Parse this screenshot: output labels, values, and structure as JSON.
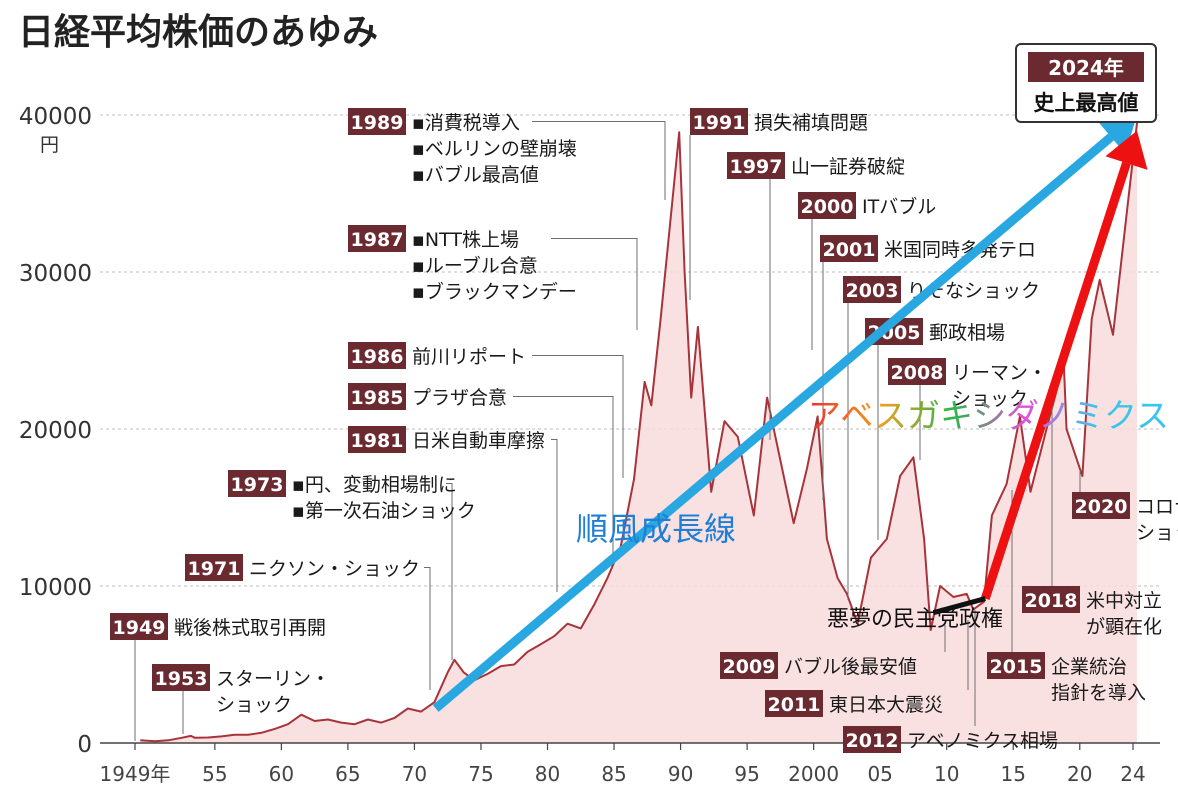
{
  "title": "日経平均株価のあゆみ",
  "chart_data": {
    "type": "area",
    "y_unit": "円",
    "ylim": [
      0,
      41000
    ],
    "xlim": [
      1949,
      2025
    ],
    "y_ticks": [
      {
        "value": 0,
        "label": "0"
      },
      {
        "value": 10000,
        "label": "10000"
      },
      {
        "value": 20000,
        "label": "20000"
      },
      {
        "value": 30000,
        "label": "30000"
      },
      {
        "value": 40000,
        "label": "40000"
      }
    ],
    "x_ticks": [
      {
        "value": 1949,
        "label": "1949年"
      },
      {
        "value": 1955,
        "label": "55"
      },
      {
        "value": 1960,
        "label": "60"
      },
      {
        "value": 1965,
        "label": "65"
      },
      {
        "value": 1970,
        "label": "70"
      },
      {
        "value": 1975,
        "label": "75"
      },
      {
        "value": 1980,
        "label": "80"
      },
      {
        "value": 1985,
        "label": "85"
      },
      {
        "value": 1990,
        "label": "90"
      },
      {
        "value": 1995,
        "label": "95"
      },
      {
        "value": 2000,
        "label": "2000"
      },
      {
        "value": 2005,
        "label": "05"
      },
      {
        "value": 2010,
        "label": "10"
      },
      {
        "value": 2015,
        "label": "15"
      },
      {
        "value": 2020,
        "label": "20"
      },
      {
        "value": 2024,
        "label": "24"
      }
    ],
    "grid": "horizontal dashed",
    "colors": {
      "line": "#a8333a",
      "fill": "#f8dcdc",
      "label_box": "#6b2a30",
      "blue_arrow": "#29a7e1",
      "red_arrow": "#ee1111"
    },
    "series": [
      {
        "values": [
          [
            1949.4,
            180
          ],
          [
            1950.5,
            110
          ],
          [
            1951.5,
            170
          ],
          [
            1952.5,
            330
          ],
          [
            1953.2,
            450
          ],
          [
            1953.5,
            330
          ],
          [
            1954.5,
            350
          ],
          [
            1955.5,
            420
          ],
          [
            1956.5,
            520
          ],
          [
            1957.5,
            520
          ],
          [
            1958.5,
            650
          ],
          [
            1959.5,
            900
          ],
          [
            1960.5,
            1200
          ],
          [
            1961.5,
            1800
          ],
          [
            1962.5,
            1400
          ],
          [
            1963.5,
            1500
          ],
          [
            1964.5,
            1300
          ],
          [
            1965.5,
            1200
          ],
          [
            1966.5,
            1500
          ],
          [
            1967.5,
            1300
          ],
          [
            1968.5,
            1600
          ],
          [
            1969.5,
            2200
          ],
          [
            1970.5,
            2000
          ],
          [
            1971.5,
            2600
          ],
          [
            1972.5,
            4500
          ],
          [
            1973.0,
            5300
          ],
          [
            1973.7,
            4500
          ],
          [
            1974.5,
            4000
          ],
          [
            1975.5,
            4400
          ],
          [
            1976.5,
            4900
          ],
          [
            1977.5,
            5000
          ],
          [
            1978.5,
            5800
          ],
          [
            1979.5,
            6300
          ],
          [
            1980.5,
            6800
          ],
          [
            1981.5,
            7600
          ],
          [
            1982.5,
            7300
          ],
          [
            1983.5,
            8800
          ],
          [
            1984.5,
            10500
          ],
          [
            1985.5,
            12500
          ],
          [
            1986.5,
            16800
          ],
          [
            1987.3,
            23000
          ],
          [
            1987.8,
            21500
          ],
          [
            1988.5,
            27000
          ],
          [
            1989.9,
            38900
          ],
          [
            1990.3,
            30000
          ],
          [
            1990.8,
            22000
          ],
          [
            1991.3,
            26500
          ],
          [
            1992.3,
            16000
          ],
          [
            1993.3,
            20500
          ],
          [
            1994.3,
            19500
          ],
          [
            1995.5,
            14500
          ],
          [
            1996.5,
            22000
          ],
          [
            1997.5,
            18000
          ],
          [
            1998.5,
            14000
          ],
          [
            1999.5,
            17500
          ],
          [
            2000.3,
            20800
          ],
          [
            2001.0,
            13000
          ],
          [
            2001.8,
            10500
          ],
          [
            2002.5,
            9500
          ],
          [
            2003.3,
            7600
          ],
          [
            2004.3,
            11800
          ],
          [
            2005.5,
            13000
          ],
          [
            2006.5,
            17000
          ],
          [
            2007.5,
            18200
          ],
          [
            2008.3,
            13000
          ],
          [
            2008.8,
            7200
          ],
          [
            2009.5,
            10000
          ],
          [
            2010.5,
            9300
          ],
          [
            2011.5,
            9500
          ],
          [
            2012.0,
            8500
          ],
          [
            2012.8,
            9000
          ],
          [
            2013.4,
            14500
          ],
          [
            2014.5,
            16500
          ],
          [
            2015.5,
            20800
          ],
          [
            2016.3,
            16000
          ],
          [
            2017.5,
            20000
          ],
          [
            2018.8,
            24200
          ],
          [
            2019.0,
            20000
          ],
          [
            2020.2,
            17000
          ],
          [
            2020.9,
            27000
          ],
          [
            2021.5,
            29500
          ],
          [
            2022.5,
            26000
          ],
          [
            2023.5,
            33500
          ],
          [
            2024.3,
            39500
          ]
        ]
      }
    ],
    "events": [
      {
        "year": "1949",
        "text": [
          "戦後株式取引再開"
        ],
        "at": 1949.4
      },
      {
        "year": "1953",
        "text": [
          "スターリン・",
          "ショック"
        ],
        "at": 1953.2
      },
      {
        "year": "1971",
        "text": [
          "ニクソン・ショック"
        ],
        "at": 1971.6
      },
      {
        "year": "1973",
        "text": [
          "▪円、変動相場制に",
          "▪第一次石油ショック"
        ],
        "at": 1973.0
      },
      {
        "year": "1981",
        "text": [
          "日米自動車摩擦"
        ],
        "at": 1981.0
      },
      {
        "year": "1985",
        "text": [
          "プラザ合意"
        ],
        "at": 1985.7
      },
      {
        "year": "1986",
        "text": [
          "前川リポート"
        ],
        "at": 1986.3
      },
      {
        "year": "1987",
        "text": [
          "▪NTT株上場",
          "▪ルーブル合意",
          "▪ブラックマンデー"
        ],
        "at": 1987.0
      },
      {
        "year": "1989",
        "text": [
          "▪消費税導入",
          "▪ベルリンの壁崩壊",
          "▪バブル最高値"
        ],
        "at": 1989.9
      },
      {
        "year": "1991",
        "text": [
          "損失補填問題"
        ],
        "at": 1991.0
      },
      {
        "year": "1997",
        "text": [
          "山一証券破綻"
        ],
        "at": 1997.8
      },
      {
        "year": "2000",
        "text": [
          "ITバブル"
        ],
        "at": 2000.2
      },
      {
        "year": "2001",
        "text": [
          "米国同時多発テロ"
        ],
        "at": 2001.7
      },
      {
        "year": "2003",
        "text": [
          "りそなショック"
        ],
        "at": 2003.3
      },
      {
        "year": "2005",
        "text": [
          "郵政相場"
        ],
        "at": 2005.0
      },
      {
        "year": "2008",
        "text": [
          "リーマン・",
          "ショック"
        ],
        "at": 2008.7
      },
      {
        "year": "2009",
        "text": [
          "バブル後最安値"
        ],
        "at": 2009.2
      },
      {
        "year": "2011",
        "text": [
          "東日本大震災"
        ],
        "at": 2011.2
      },
      {
        "year": "2012",
        "text": [
          "アベノミクス相場"
        ],
        "at": 2012.9
      },
      {
        "year": "2015",
        "text": [
          "企業統治",
          "指針を導入"
        ],
        "at": 2015.3
      },
      {
        "year": "2018",
        "text": [
          "米中対立",
          "が顕在化"
        ],
        "at": 2018.0
      },
      {
        "year": "2020",
        "text": [
          "コロナ",
          "ショック"
        ],
        "at": 2020.2
      }
    ],
    "callout": {
      "year": "2024年",
      "text": "史上最高値"
    },
    "annotations": {
      "blue_arrow_label": "順風成長線",
      "rainbow_label": "アベスガキシダノミクス",
      "dark_period_label": "悪夢の民主党政権"
    },
    "arrows": {
      "blue": {
        "from": [
          1971.6,
          2200
        ],
        "to": [
          2024.3,
          40000
        ]
      },
      "red": {
        "from": [
          2012.9,
          9200
        ],
        "to": [
          2024.3,
          39000
        ]
      },
      "black": {
        "from": [
          2009.0,
          8300
        ],
        "to": [
          2012.9,
          9200
        ]
      }
    }
  }
}
